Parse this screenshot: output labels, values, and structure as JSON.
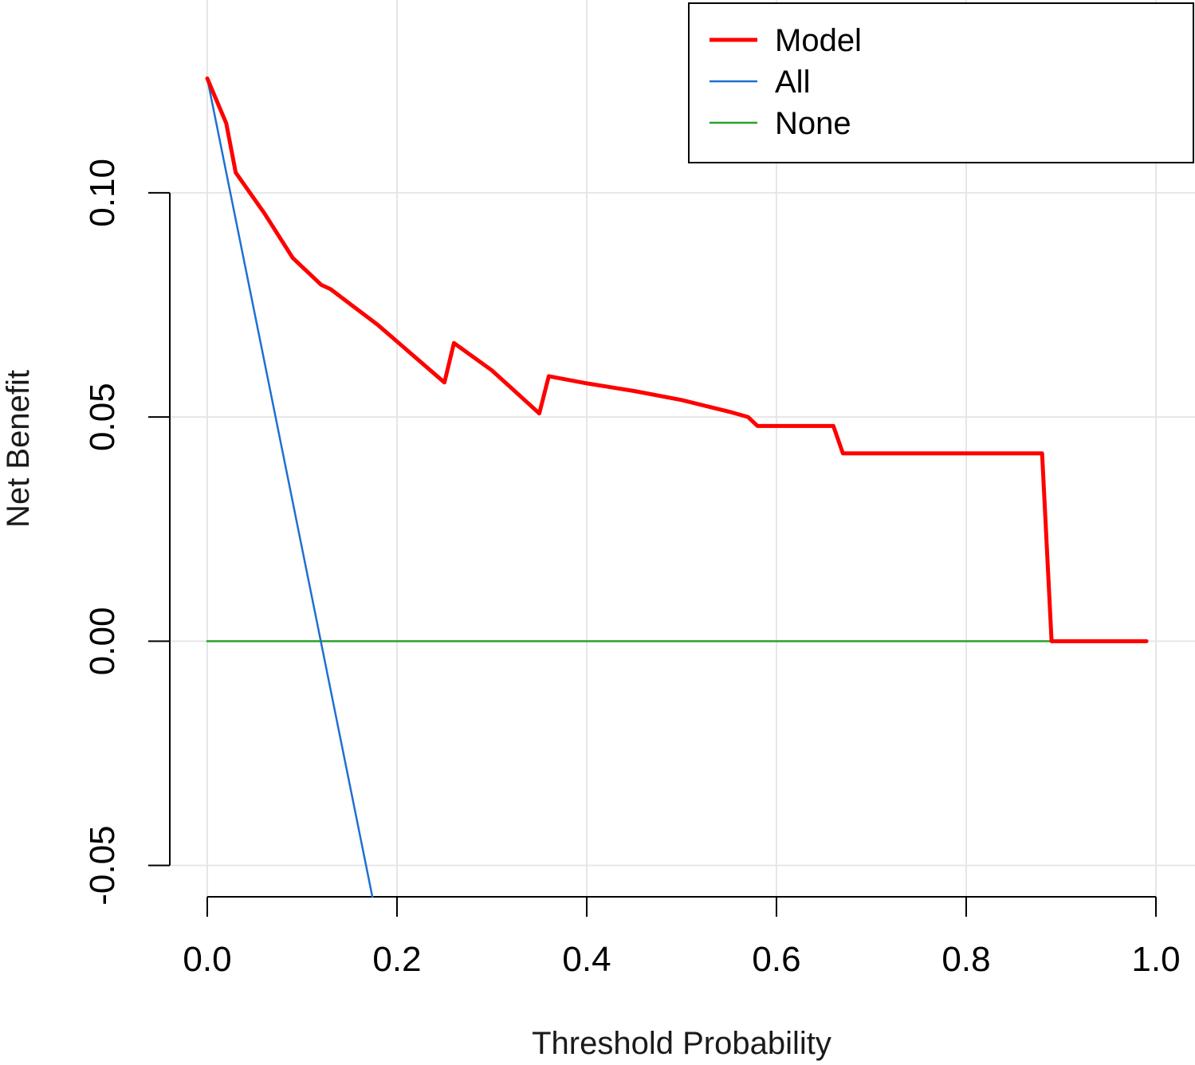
{
  "chart_data": {
    "type": "line",
    "title": "",
    "xlabel": "Threshold Probability",
    "ylabel": "Net Benefit",
    "xlim": [
      0,
      1
    ],
    "ylim": [
      -0.057,
      0.143
    ],
    "grid": true,
    "legend_position": "top-right",
    "x_ticks": [
      0.0,
      0.2,
      0.4,
      0.6,
      0.8,
      1.0
    ],
    "x_tick_labels": [
      "0.0",
      "0.2",
      "0.4",
      "0.6",
      "0.8",
      "1.0"
    ],
    "y_ticks": [
      -0.05,
      0.0,
      0.05,
      0.1
    ],
    "y_tick_labels": [
      "-0.05",
      "0.00",
      "0.05",
      "0.10"
    ],
    "series": [
      {
        "name": "Model",
        "color": "#ff0000",
        "x": [
          0.0,
          0.02,
          0.03,
          0.06,
          0.09,
          0.12,
          0.13,
          0.18,
          0.25,
          0.26,
          0.3,
          0.35,
          0.36,
          0.4,
          0.45,
          0.5,
          0.55,
          0.57,
          0.58,
          0.66,
          0.67,
          0.88,
          0.89,
          0.99
        ],
        "y": [
          0.1255,
          0.1155,
          0.1045,
          0.0955,
          0.0855,
          0.0795,
          0.0785,
          0.0705,
          0.0577,
          0.0665,
          0.0604,
          0.0508,
          0.0591,
          0.0575,
          0.0558,
          0.0538,
          0.0512,
          0.05,
          0.048,
          0.048,
          0.0419,
          0.0419,
          0.0,
          0.0
        ]
      },
      {
        "name": "All",
        "color": "#1f6fd1",
        "x": [
          0.0,
          0.174
        ],
        "y": [
          0.1255,
          -0.057
        ]
      },
      {
        "name": "None",
        "color": "#2ca02c",
        "x": [
          0.0,
          0.89
        ],
        "y": [
          0.0,
          0.0
        ]
      }
    ]
  }
}
